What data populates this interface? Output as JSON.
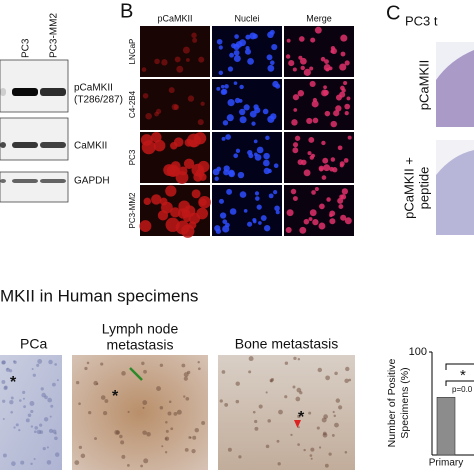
{
  "panel_a": {
    "lanes": [
      "PC3",
      "PC3-MM2"
    ],
    "bands": [
      [
        "pCaMKII",
        "(T286/287)"
      ],
      [
        "CaMKII"
      ],
      [
        "GAPDH"
      ]
    ]
  },
  "panel_b": {
    "label": "B",
    "columns": [
      "pCaMKII",
      "Nuclei",
      "Merge"
    ],
    "rows": [
      "LNCaP",
      "C4-2B4",
      "PC3",
      "PC3-MM2"
    ]
  },
  "panel_c": {
    "label": "C",
    "title": "PC3 t",
    "rows": [
      [
        "pCaMKII"
      ],
      [
        "pCaMKII +",
        "peptide"
      ]
    ]
  },
  "panel_d": {
    "title": "MKII in Human specimens",
    "images": [
      {
        "label": [
          "PCa"
        ],
        "mark": "*"
      },
      {
        "label": [
          "Lymph node",
          "metastasis"
        ],
        "mark": "*"
      },
      {
        "label": [
          "Bone metastasis"
        ],
        "mark": "*"
      }
    ],
    "chart_data": {
      "type": "bar",
      "ylabel": [
        "Number of Positive",
        "Specimens (%)"
      ],
      "categories": [
        "Primary"
      ],
      "values": [
        56
      ],
      "color": "#8c8c8c",
      "ylim": [
        0,
        100
      ],
      "yticks": [
        100
      ],
      "annotations": [
        "*",
        "p=0.0"
      ]
    }
  }
}
